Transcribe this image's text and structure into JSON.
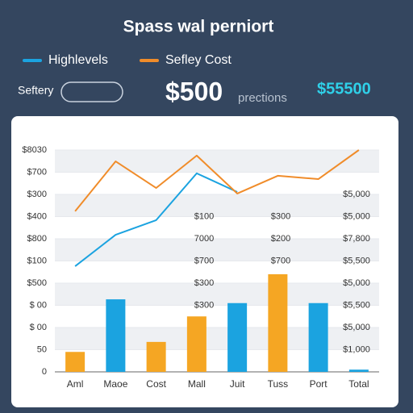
{
  "header": {
    "title": "Spass wal perniort"
  },
  "controls": {
    "label": "Seftery",
    "big_value": "$500",
    "big_value_note": "prections",
    "side_value": "$55500"
  },
  "chart_data": {
    "type": "bar",
    "categories": [
      "Aml",
      "Maoe",
      "Cost",
      "Mall",
      "Juit",
      "Tuss",
      "Port",
      "Total"
    ],
    "values": [
      90,
      327,
      135,
      250,
      310,
      440,
      310,
      10
    ],
    "colors": [
      "#f5a623",
      "#1ba3e0",
      "#f5a623",
      "#f5a623",
      "#1ba3e0",
      "#f5a623",
      "#1ba3e0",
      "#1ba3e0"
    ],
    "series": [
      {
        "name": "Highlevels",
        "color": "#1ba3e0",
        "values": [
          476,
          618,
          684,
          895,
          811,
          null,
          null,
          null
        ]
      },
      {
        "name": "Sefley Cost",
        "color": "#f08c2a",
        "values": [
          724,
          949,
          829,
          975,
          804,
          884,
          869,
          1000
        ]
      }
    ],
    "ylim": [
      0,
      1000
    ],
    "yticks": [
      0,
      {
        "value": 100,
        "label": "50"
      },
      {
        "value": 200,
        "label": "$ 00"
      },
      {
        "value": 300,
        "label": "$ 00"
      },
      {
        "value": 400,
        "label": "$500"
      },
      {
        "value": 500,
        "label": "$100"
      },
      {
        "value": 600,
        "label": "$800"
      },
      {
        "value": 700,
        "label": "$400"
      },
      {
        "value": 800,
        "label": "$300"
      },
      {
        "value": 900,
        "label": "$700"
      },
      {
        "value": 1000,
        "label": "$8030"
      }
    ],
    "annotations": [
      [
        "$100",
        "7000",
        "$700",
        "$300",
        "$300"
      ],
      [
        "$300",
        "$200",
        "$700"
      ],
      [
        "$5,000",
        "$5,000",
        "$7,800",
        "$5,500",
        "$5,000",
        "$5,500",
        "$5,000",
        "$1,000"
      ]
    ],
    "grid": true
  }
}
